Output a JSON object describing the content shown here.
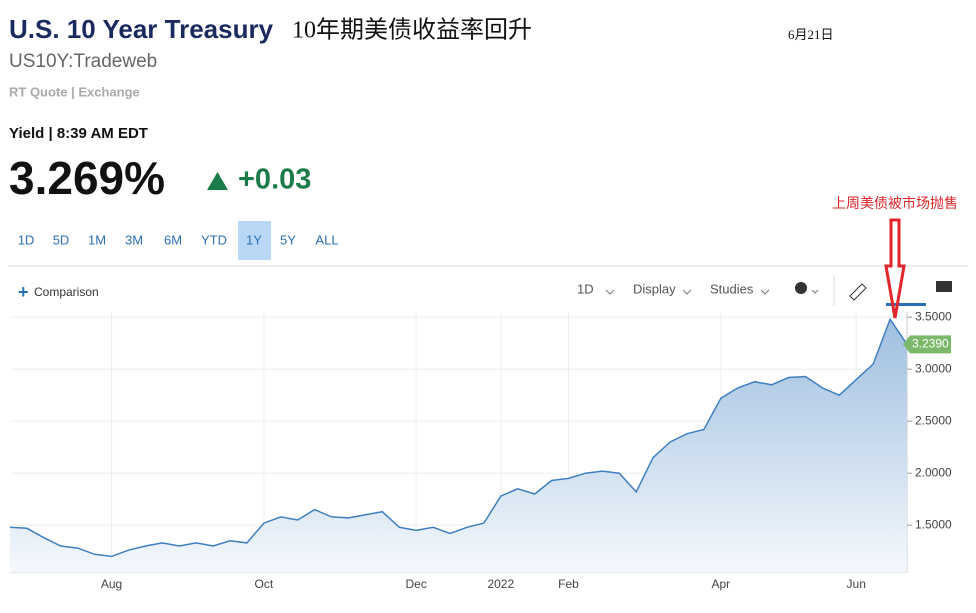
{
  "header": {
    "title": "U.S. 10 Year Treasury",
    "headline": "10年期美债收益率回升",
    "date": "6月21日",
    "symbol": "US10Y:Tradeweb",
    "source": "RT Quote | Exchange",
    "quote_time": "Yield | 8:39 AM EDT",
    "price": "3.269%",
    "change": "+0.03"
  },
  "ranges": [
    "1D",
    "5D",
    "1M",
    "3M",
    "6M",
    "YTD",
    "1Y",
    "5Y",
    "ALL"
  ],
  "active_range": 6,
  "toolbar": {
    "comparison": "Comparison",
    "interval": "1D",
    "display": "Display",
    "studies": "Studies"
  },
  "chart_data": {
    "type": "line",
    "annotation": "上周美债被市场抛售",
    "categories": [
      null,
      null,
      null,
      null,
      null,
      null,
      "Aug",
      null,
      null,
      null,
      null,
      null,
      null,
      null,
      null,
      "Oct",
      null,
      null,
      null,
      null,
      null,
      null,
      null,
      null,
      "Dec",
      null,
      null,
      null,
      null,
      "2022",
      null,
      null,
      null,
      "Feb",
      null,
      null,
      null,
      null,
      null,
      null,
      null,
      null,
      "Apr",
      null,
      null,
      null,
      null,
      null,
      null,
      null,
      "Jun",
      null,
      null,
      null
    ],
    "series": [
      {
        "color": "#3f7fc0",
        "values": [
          1.48,
          1.47,
          1.38,
          1.3,
          1.28,
          1.22,
          1.2,
          1.26,
          1.3,
          1.33,
          1.3,
          1.33,
          1.3,
          1.35,
          1.33,
          1.52,
          1.58,
          1.55,
          1.65,
          1.58,
          1.57,
          1.6,
          1.63,
          1.48,
          1.45,
          1.48,
          1.42,
          1.48,
          1.52,
          1.78,
          1.85,
          1.8,
          1.93,
          1.95,
          2.0,
          2.02,
          2.0,
          1.82,
          2.15,
          2.3,
          2.38,
          2.42,
          2.72,
          2.82,
          2.88,
          2.85,
          2.92,
          2.93,
          2.82,
          2.75,
          2.9,
          3.05,
          3.48,
          3.239
        ],
        "value_labels": [
          null,
          null,
          null,
          null,
          null,
          null,
          null,
          null,
          null,
          null,
          null,
          null,
          null,
          null,
          null,
          null,
          null,
          null,
          null,
          null,
          null,
          null,
          null,
          null,
          null,
          null,
          null,
          null,
          null,
          null,
          null,
          null,
          null,
          null,
          null,
          null,
          null,
          null,
          null,
          null,
          null,
          null,
          null,
          null,
          null,
          null,
          null,
          null,
          null,
          null,
          null,
          null,
          null,
          "3.2390"
        ]
      }
    ],
    "ylim": [
      1.05,
      3.55
    ],
    "yticks": [
      {
        "value": 1.5,
        "label": "1.5000"
      },
      {
        "value": 2,
        "label": "2.0000"
      },
      {
        "value": 2.5,
        "label": "2.5000"
      },
      {
        "value": 3,
        "label": "3.0000"
      },
      {
        "value": 3.5,
        "label": "3.5000"
      }
    ],
    "grid": true
  }
}
